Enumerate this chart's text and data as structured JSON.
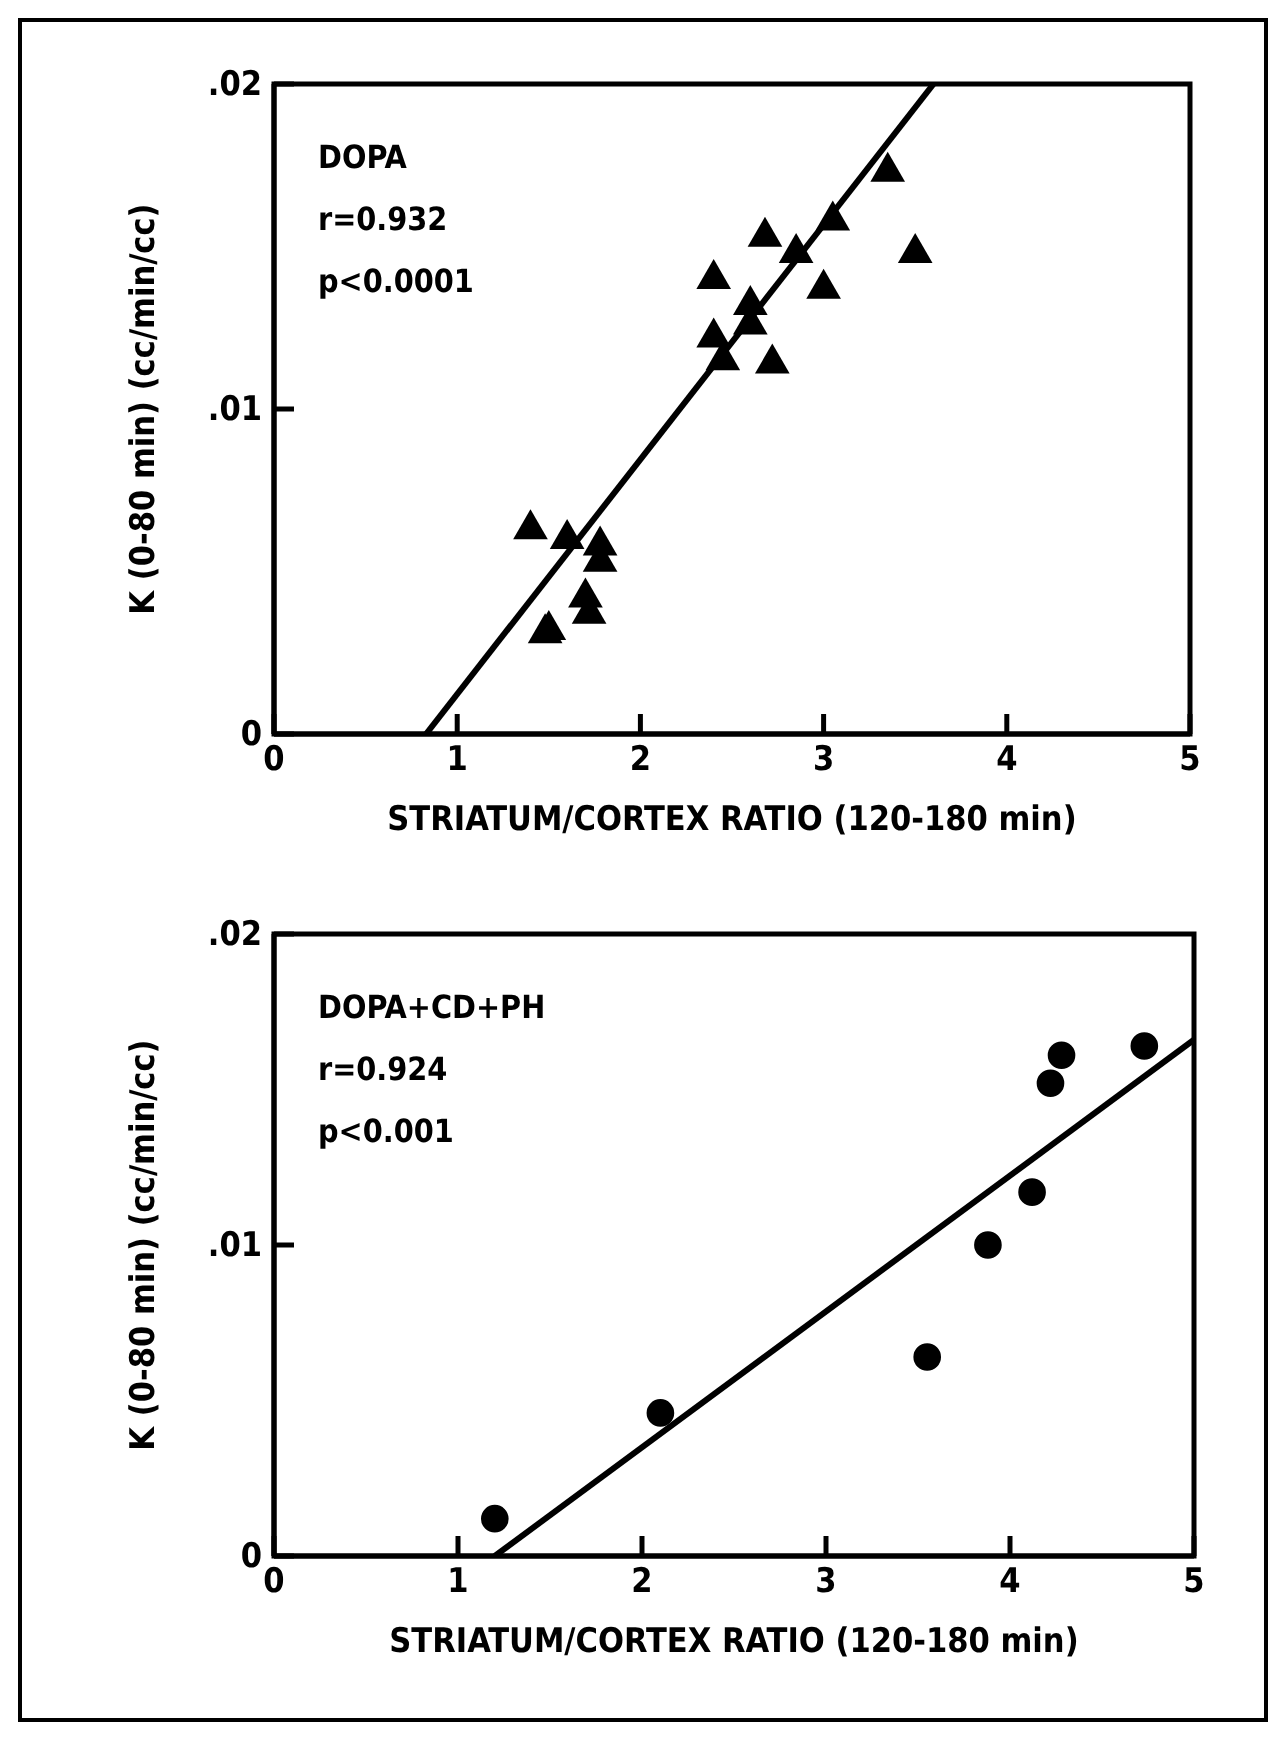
{
  "chart_data": [
    {
      "type": "scatter",
      "xlabel": "STRIATUM/CORTEX RATIO (120-180 min)",
      "ylabel": "K (0-80 min) (cc/min/cc)",
      "annotations": [
        "DOPA",
        "r=0.932",
        "p<0.0001"
      ],
      "xlim": [
        0,
        5
      ],
      "xticks": [
        0,
        1,
        2,
        3,
        4,
        5
      ],
      "ylim": [
        0,
        0.02
      ],
      "yticks": [
        {
          "value": 0,
          "label": "0"
        },
        {
          "value": 0.01,
          "label": ".01"
        },
        {
          "value": 0.02,
          "label": ".02"
        }
      ],
      "grid": false,
      "series": [
        {
          "type": "scatter",
          "marker": "triangle",
          "color": "#000000",
          "x": [
            1.4,
            1.48,
            1.5,
            1.6,
            1.7,
            1.72,
            1.78,
            1.78,
            2.4,
            2.4,
            2.45,
            2.6,
            2.6,
            2.68,
            2.72,
            2.85,
            3.0,
            3.05,
            3.35,
            3.5
          ],
          "values": [
            0.0063,
            0.0031,
            0.0032,
            0.006,
            0.0042,
            0.0037,
            0.0058,
            0.0053,
            0.014,
            0.0122,
            0.0115,
            0.0132,
            0.0126,
            0.0153,
            0.0114,
            0.0148,
            0.0137,
            0.0158,
            0.0173,
            0.0148
          ]
        },
        {
          "type": "line",
          "marker": "none",
          "line_style": "solid",
          "color": "#000000",
          "x": [
            0.83,
            3.6
          ],
          "values": [
            0,
            0.02
          ]
        }
      ]
    },
    {
      "type": "scatter",
      "xlabel": "STRIATUM/CORTEX RATIO (120-180 min)",
      "ylabel": "K (0-80 min) (cc/min/cc)",
      "annotations": [
        "DOPA+CD+PH",
        "r=0.924",
        "p<0.001"
      ],
      "xlim": [
        0,
        5
      ],
      "xticks": [
        0,
        1,
        2,
        3,
        4,
        5
      ],
      "ylim": [
        0,
        0.02
      ],
      "yticks": [
        {
          "value": 0,
          "label": "0"
        },
        {
          "value": 0.01,
          "label": ".01"
        },
        {
          "value": 0.02,
          "label": ".02"
        }
      ],
      "grid": false,
      "series": [
        {
          "type": "scatter",
          "marker": "circle",
          "color": "#000000",
          "x": [
            1.2,
            2.1,
            3.55,
            3.88,
            4.12,
            4.22,
            4.28,
            4.73
          ],
          "values": [
            0.0012,
            0.0046,
            0.0064,
            0.01,
            0.0117,
            0.0152,
            0.0161,
            0.0164
          ]
        },
        {
          "type": "line",
          "marker": "none",
          "line_style": "solid",
          "color": "#000000",
          "x": [
            1.2,
            5
          ],
          "values": [
            0,
            0.0166
          ]
        }
      ]
    }
  ]
}
